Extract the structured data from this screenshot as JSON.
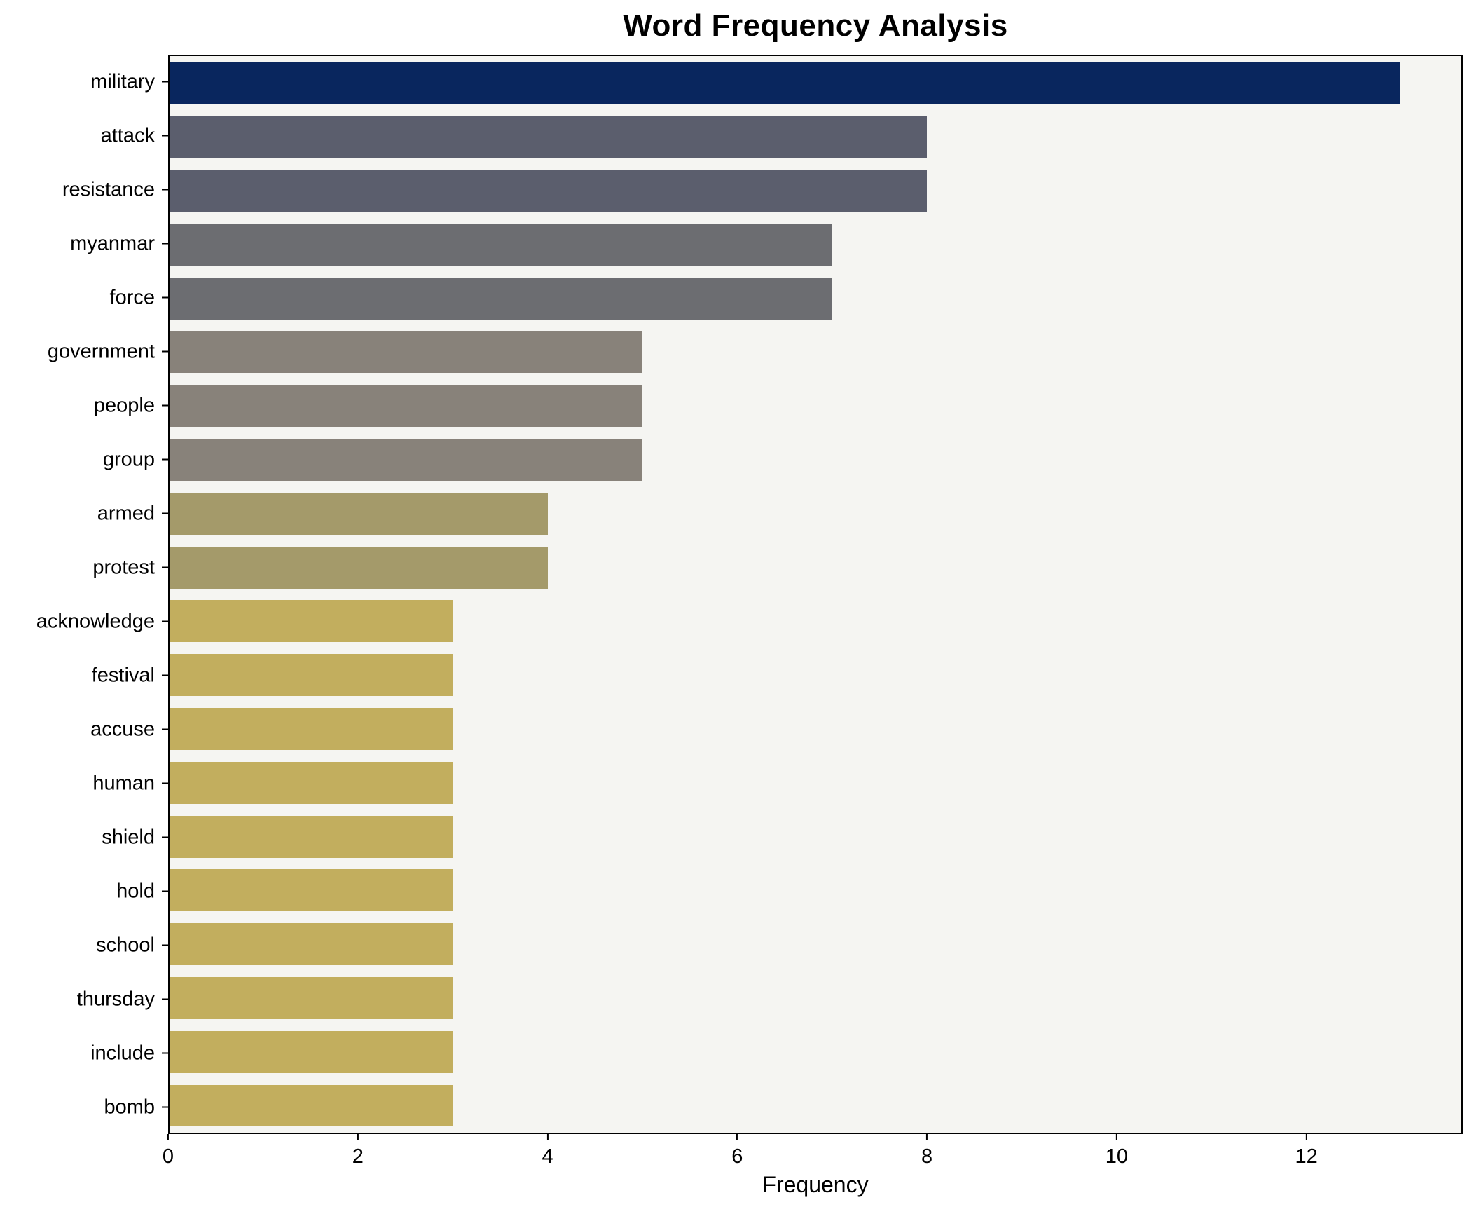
{
  "chart_data": {
    "type": "bar",
    "orientation": "horizontal",
    "title": "Word Frequency Analysis",
    "xlabel": "Frequency",
    "ylabel": "",
    "categories": [
      "military",
      "attack",
      "resistance",
      "myanmar",
      "force",
      "government",
      "people",
      "group",
      "armed",
      "protest",
      "acknowledge",
      "festival",
      "accuse",
      "human",
      "shield",
      "hold",
      "school",
      "thursday",
      "include",
      "bomb"
    ],
    "values": [
      13,
      8,
      8,
      7,
      7,
      5,
      5,
      5,
      4,
      4,
      3,
      3,
      3,
      3,
      3,
      3,
      3,
      3,
      3,
      3
    ],
    "bar_colors": [
      "#09265e",
      "#5b5e6d",
      "#5b5e6d",
      "#6c6d71",
      "#6c6d71",
      "#88827a",
      "#88827a",
      "#88827a",
      "#a49a6a",
      "#a49a6a",
      "#c2ae5e",
      "#c2ae5e",
      "#c2ae5e",
      "#c2ae5e",
      "#c2ae5e",
      "#c2ae5e",
      "#c2ae5e",
      "#c2ae5e",
      "#c2ae5e",
      "#c2ae5e"
    ],
    "xticks": [
      0,
      2,
      4,
      6,
      8,
      10,
      12
    ],
    "xlim": [
      0,
      13.65
    ],
    "grid": false,
    "legend": "none",
    "plot_background": "#f5f5f2",
    "figure_background": "#ffffff",
    "axis_color": "#000000"
  }
}
